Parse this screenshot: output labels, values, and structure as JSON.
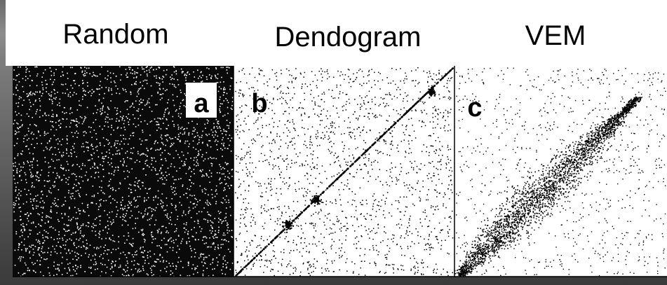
{
  "titles": [
    "Random",
    "Dendogram",
    "VEM"
  ],
  "panels": [
    {
      "label": "a"
    },
    {
      "label": "b"
    },
    {
      "label": "c"
    }
  ]
}
